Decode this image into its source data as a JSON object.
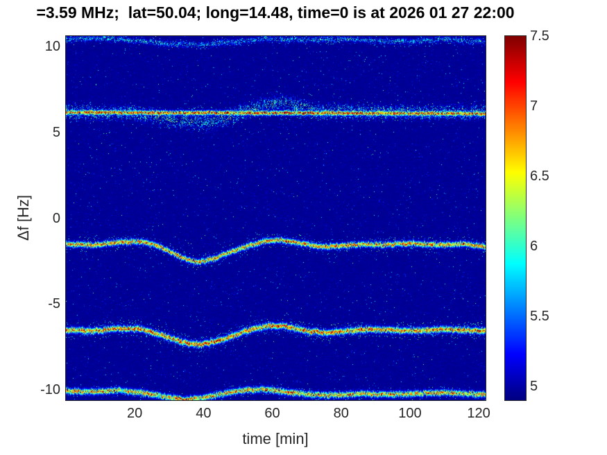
{
  "title": "=3.59 MHz;  lat=50.04; long=14.48, time=0 is at 2026 01 27 22:00",
  "axes": {
    "xlabel": "time [min]",
    "ylabel": "Δf [Hz]",
    "x_ticks": [
      20,
      40,
      60,
      80,
      100,
      120
    ],
    "y_ticks": [
      10,
      5,
      0,
      -5,
      -10
    ]
  },
  "colorbar": {
    "ticks": [
      5,
      5.5,
      6,
      6.5,
      7,
      7.5
    ],
    "min": 4.9,
    "max": 7.5,
    "colormap": "jet"
  },
  "chart_data": {
    "type": "heatmap",
    "title": "=3.59 MHz;  lat=50.04; long=14.48, time=0 is at 2026 01 27 22:00",
    "xlabel": "time [min]",
    "ylabel": "Δf [Hz]",
    "xlim": [
      0,
      122
    ],
    "ylim": [
      -10.6,
      10.6
    ],
    "clim": [
      4.9,
      7.5
    ],
    "background_level": 4.95,
    "description": "Doppler-shift spectrogram: five quasi-horizontal spectral traces on a speckled dark-blue background, intensity in jet colormap from ~4.9 (dark blue) to 7.5 (dark red)",
    "traces": [
      {
        "name": "upper-weak-trace",
        "points": [
          [
            0,
            10.45
          ],
          [
            12,
            10.5
          ],
          [
            22,
            10.35
          ],
          [
            30,
            10.15
          ],
          [
            40,
            10.1
          ],
          [
            50,
            10.3
          ],
          [
            58,
            10.45
          ],
          [
            70,
            10.4
          ],
          [
            80,
            10.45
          ],
          [
            90,
            10.35
          ],
          [
            100,
            10.3
          ],
          [
            110,
            10.45
          ],
          [
            122,
            10.25
          ]
        ],
        "peak": 5.75,
        "sigma": 0.09,
        "density": 0.5,
        "jitter": 0.07,
        "speckle": 1,
        "spread": 0.3
      },
      {
        "name": "strong-line-6Hz",
        "points": [
          [
            0,
            6.17
          ],
          [
            30,
            6.15
          ],
          [
            60,
            6.15
          ],
          [
            90,
            6.12
          ],
          [
            122,
            6.1
          ]
        ],
        "peak": 7.0,
        "sigma": 0.08,
        "density": 0.92,
        "jitter": 0.03,
        "speckle": 2,
        "spread": 0.35
      },
      {
        "name": "diffuse-cloud-6Hz",
        "points": [
          [
            0,
            6.2
          ],
          [
            18,
            6.12
          ],
          [
            25,
            5.95
          ],
          [
            32,
            5.7
          ],
          [
            38,
            5.55
          ],
          [
            43,
            5.6
          ],
          [
            48,
            5.95
          ],
          [
            53,
            6.3
          ],
          [
            58,
            6.6
          ],
          [
            63,
            6.75
          ],
          [
            68,
            6.5
          ],
          [
            74,
            6.25
          ],
          [
            82,
            6.2
          ],
          [
            122,
            6.18
          ]
        ],
        "peak": 6.0,
        "sigma": 0.2,
        "density": 0.3,
        "jitter": 0.18,
        "speckle": 2,
        "spread": 0.5
      },
      {
        "name": "mid-trace-minus1.5Hz",
        "points": [
          [
            0,
            -1.5
          ],
          [
            8,
            -1.55
          ],
          [
            15,
            -1.4
          ],
          [
            22,
            -1.35
          ],
          [
            28,
            -1.7
          ],
          [
            34,
            -2.3
          ],
          [
            38,
            -2.55
          ],
          [
            43,
            -2.35
          ],
          [
            48,
            -1.95
          ],
          [
            53,
            -1.6
          ],
          [
            58,
            -1.3
          ],
          [
            63,
            -1.25
          ],
          [
            68,
            -1.45
          ],
          [
            74,
            -1.65
          ],
          [
            80,
            -1.6
          ],
          [
            86,
            -1.5
          ],
          [
            92,
            -1.55
          ],
          [
            100,
            -1.45
          ],
          [
            108,
            -1.55
          ],
          [
            115,
            -1.5
          ],
          [
            122,
            -1.62
          ]
        ],
        "peak": 6.8,
        "sigma": 0.09,
        "density": 1,
        "jitter": 0.06,
        "speckle": 2,
        "spread": 0.45
      },
      {
        "name": "lower-trace-minus6.5Hz",
        "points": [
          [
            0,
            -6.5
          ],
          [
            8,
            -6.55
          ],
          [
            15,
            -6.4
          ],
          [
            22,
            -6.45
          ],
          [
            28,
            -6.8
          ],
          [
            34,
            -7.2
          ],
          [
            39,
            -7.35
          ],
          [
            44,
            -7.15
          ],
          [
            49,
            -6.8
          ],
          [
            54,
            -6.45
          ],
          [
            59,
            -6.25
          ],
          [
            64,
            -6.3
          ],
          [
            70,
            -6.55
          ],
          [
            76,
            -6.65
          ],
          [
            82,
            -6.55
          ],
          [
            88,
            -6.45
          ],
          [
            95,
            -6.5
          ],
          [
            102,
            -6.55
          ],
          [
            109,
            -6.45
          ],
          [
            116,
            -6.5
          ],
          [
            122,
            -6.55
          ]
        ],
        "peak": 6.9,
        "sigma": 0.1,
        "density": 1,
        "jitter": 0.06,
        "speckle": 3,
        "spread": 0.5
      },
      {
        "name": "bottom-trace-minus10Hz",
        "points": [
          [
            0,
            -10.05
          ],
          [
            8,
            -10.1
          ],
          [
            15,
            -10.0
          ],
          [
            22,
            -10.15
          ],
          [
            28,
            -10.35
          ],
          [
            34,
            -10.55
          ],
          [
            40,
            -10.45
          ],
          [
            46,
            -10.2
          ],
          [
            52,
            -10.0
          ],
          [
            58,
            -9.95
          ],
          [
            64,
            -10.1
          ],
          [
            70,
            -10.25
          ],
          [
            78,
            -10.3
          ],
          [
            86,
            -10.2
          ],
          [
            94,
            -10.25
          ],
          [
            102,
            -10.2
          ],
          [
            110,
            -10.15
          ],
          [
            122,
            -10.25
          ]
        ],
        "peak": 6.7,
        "sigma": 0.1,
        "density": 0.95,
        "jitter": 0.06,
        "speckle": 1,
        "spread": 0.35
      }
    ]
  }
}
